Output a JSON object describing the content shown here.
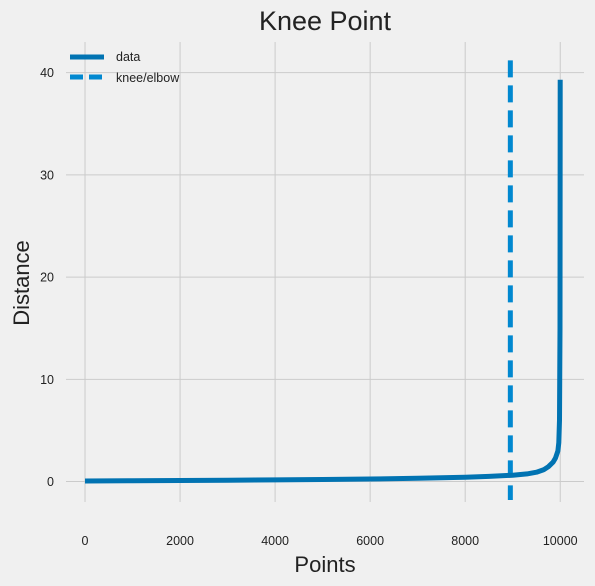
{
  "chart_data": {
    "type": "line",
    "title": "Knee Point",
    "xlabel": "Points",
    "ylabel": "Distance",
    "xlim": [
      -400,
      10500
    ],
    "ylim": [
      -2.0,
      43.0
    ],
    "xticks": [
      0,
      2000,
      4000,
      6000,
      8000,
      10000
    ],
    "yticks": [
      0,
      10,
      20,
      30,
      40
    ],
    "grid": true,
    "legend": "top-left",
    "series": [
      {
        "name": "data",
        "color": "#0173b2",
        "x": [
          0,
          1000,
          2000,
          3000,
          4000,
          5000,
          6000,
          7000,
          8000,
          8500,
          9000,
          9300,
          9500,
          9650,
          9750,
          9850,
          9900,
          9950,
          9970,
          9985,
          9995,
          10000
        ],
        "y": [
          0.05,
          0.08,
          0.1,
          0.13,
          0.16,
          0.2,
          0.25,
          0.32,
          0.42,
          0.5,
          0.62,
          0.75,
          0.92,
          1.15,
          1.45,
          1.9,
          2.3,
          3.0,
          3.8,
          6.0,
          15.0,
          39.3
        ]
      }
    ],
    "vlines": [
      {
        "name": "knee/elbow",
        "color": "#0188d0",
        "x": 8950,
        "ymin": -1.8,
        "ymax": 41.2
      }
    ]
  }
}
